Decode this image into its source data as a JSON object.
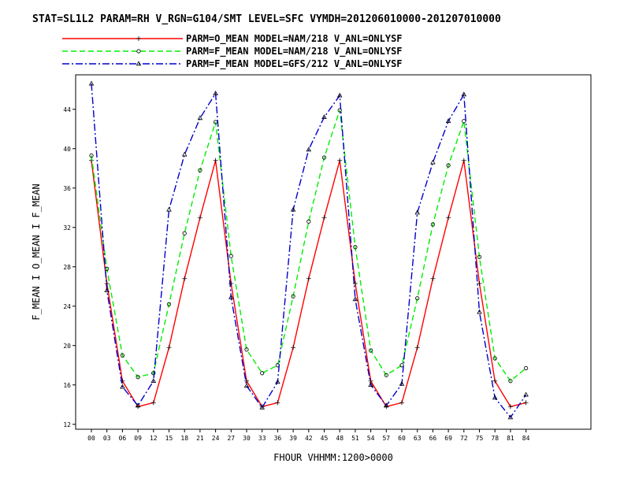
{
  "chart_data": {
    "type": "line",
    "title": "STAT=SL1L2 PARAM=RH V_RGN=G104/SMT LEVEL=SFC VYMDH=201206010000-201207010000",
    "xlabel": "FHOUR VHHMM:1200>0000",
    "ylabel": "F_MEAN I O_MEAN I F_MEAN",
    "categories": [
      "00",
      "03",
      "06",
      "09",
      "12",
      "15",
      "18",
      "21",
      "24",
      "27",
      "30",
      "33",
      "36",
      "39",
      "42",
      "45",
      "48",
      "51",
      "54",
      "57",
      "60",
      "63",
      "66",
      "69",
      "72",
      "75",
      "78",
      "81",
      "84"
    ],
    "ylim": [
      11.5,
      47.5
    ],
    "yticks": [
      12,
      16,
      20,
      24,
      28,
      32,
      36,
      40,
      44
    ],
    "grid": false,
    "legend_position": "top",
    "series": [
      {
        "name": "PARM=O_MEAN MODEL=NAM/218 V_ANL=ONLYSF",
        "color": "#ff0000",
        "dash": "solid",
        "marker": "plus",
        "values": [
          38.8,
          26.3,
          16.4,
          13.8,
          14.2,
          19.8,
          26.8,
          33.0,
          38.8,
          26.3,
          16.4,
          13.8,
          14.2,
          19.8,
          26.8,
          33.0,
          38.8,
          26.3,
          16.4,
          13.8,
          14.2,
          19.8,
          26.8,
          33.0,
          38.8,
          26.3,
          16.4,
          13.8,
          14.2
        ]
      },
      {
        "name": "PARM=F_MEAN MODEL=NAM/218 V_ANL=ONLYSF",
        "color": "#00ee00",
        "dash": "dashed",
        "marker": "circle",
        "values": [
          39.3,
          27.8,
          19.0,
          16.8,
          17.2,
          24.2,
          31.4,
          37.8,
          42.7,
          29.1,
          19.6,
          17.2,
          18.0,
          25.0,
          32.6,
          39.1,
          43.9,
          30.0,
          19.5,
          17.0,
          18.0,
          24.8,
          32.3,
          38.3,
          42.8,
          29.0,
          18.7,
          16.4,
          17.7
        ]
      },
      {
        "name": "PARM=F_MEAN MODEL=GFS/212 V_ANL=ONLYSF",
        "color": "#0000cc",
        "dash": "dashdot",
        "marker": "triangle",
        "values": [
          46.6,
          25.6,
          15.8,
          13.9,
          16.4,
          33.8,
          39.4,
          43.1,
          45.6,
          24.9,
          15.9,
          13.7,
          16.3,
          33.8,
          39.9,
          43.2,
          45.4,
          24.7,
          16.0,
          13.9,
          16.1,
          33.5,
          38.6,
          42.8,
          45.5,
          23.4,
          14.7,
          12.7,
          15.0
        ]
      }
    ]
  }
}
